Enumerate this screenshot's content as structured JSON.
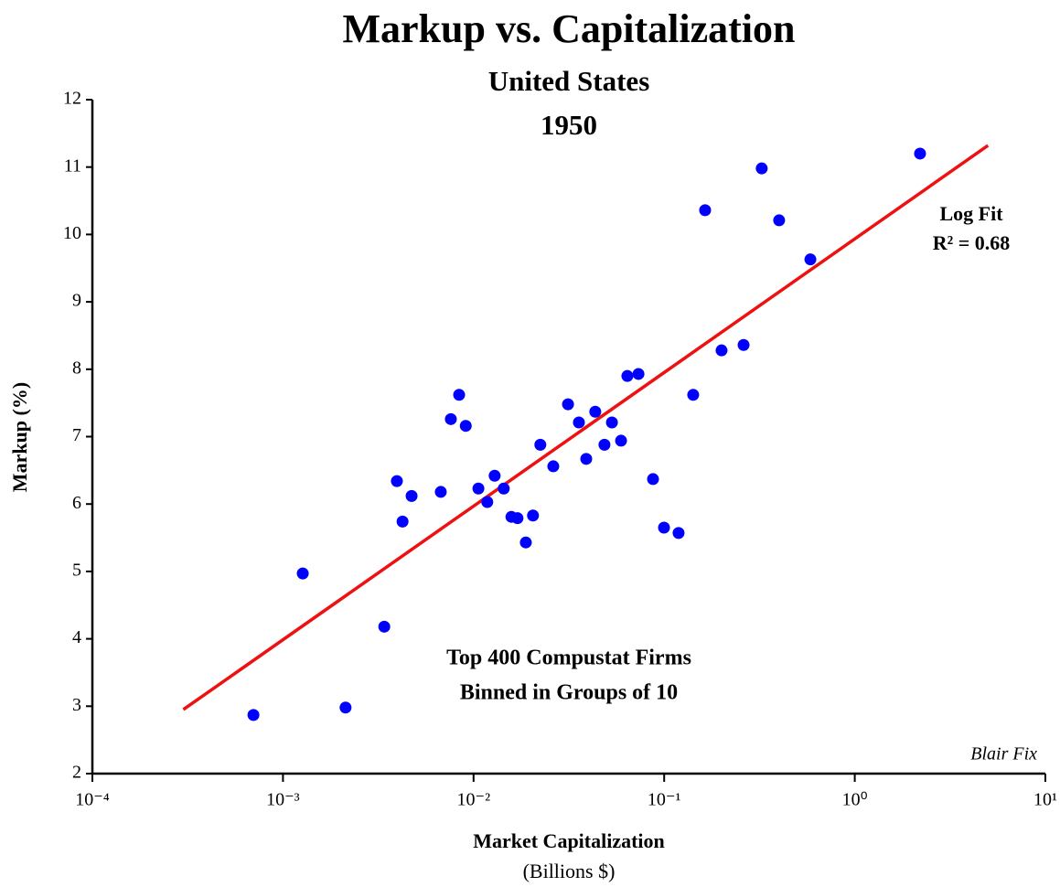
{
  "chart_data": {
    "type": "scatter",
    "title": "Markup vs. Capitalization",
    "subtitle": [
      "United States",
      "1950"
    ],
    "x_label": "Market Capitalization",
    "x_unit": "(Billions $)",
    "y_label": "Markup (%)",
    "annotations": [
      "Top 400 Compustat Firms",
      "Binned in Groups of 10"
    ],
    "credit": "Blair Fix",
    "x_scale": "log",
    "xlim": [
      0.0001,
      10
    ],
    "xticks": [
      {
        "value": 0.0001,
        "label": "10⁻⁴"
      },
      {
        "value": 0.001,
        "label": "10⁻³"
      },
      {
        "value": 0.01,
        "label": "10⁻²"
      },
      {
        "value": 0.1,
        "label": "10⁻¹"
      },
      {
        "value": 1,
        "label": "10⁰"
      },
      {
        "value": 10,
        "label": "10¹"
      }
    ],
    "ylim": [
      2,
      12
    ],
    "yticks": [
      2,
      3,
      4,
      5,
      6,
      7,
      8,
      9,
      10,
      11,
      12
    ],
    "color": "#0000ff",
    "x": [
      0.0007,
      0.00127,
      0.00213,
      0.0034,
      0.00396,
      0.00473,
      0.00424,
      0.00673,
      0.0076,
      0.0084,
      0.0091,
      0.0106,
      0.0118,
      0.0129,
      0.0144,
      0.0158,
      0.017,
      0.0188,
      0.0205,
      0.0224,
      0.0262,
      0.0313,
      0.0357,
      0.039,
      0.0435,
      0.0486,
      0.0532,
      0.0594,
      0.0641,
      0.0733,
      0.0874,
      0.0998,
      0.119,
      0.142,
      0.164,
      0.2,
      0.261,
      0.325,
      0.401,
      0.585,
      2.2
    ],
    "values": [
      2.87,
      4.97,
      2.98,
      4.18,
      6.34,
      6.12,
      5.74,
      6.18,
      7.26,
      7.62,
      7.16,
      6.23,
      6.03,
      6.42,
      6.23,
      5.81,
      5.79,
      5.43,
      5.83,
      6.88,
      6.56,
      7.48,
      7.21,
      6.67,
      7.37,
      6.88,
      7.21,
      6.94,
      7.9,
      7.93,
      6.37,
      5.65,
      5.57,
      7.62,
      10.36,
      8.28,
      8.36,
      10.98,
      10.21,
      9.63,
      11.2
    ],
    "fit": {
      "name": "Log Fit",
      "r2_label": "R² = 0.68",
      "color": "#ee1111",
      "x": [
        0.0003,
        5.0
      ],
      "y": [
        2.95,
        11.32
      ]
    }
  }
}
